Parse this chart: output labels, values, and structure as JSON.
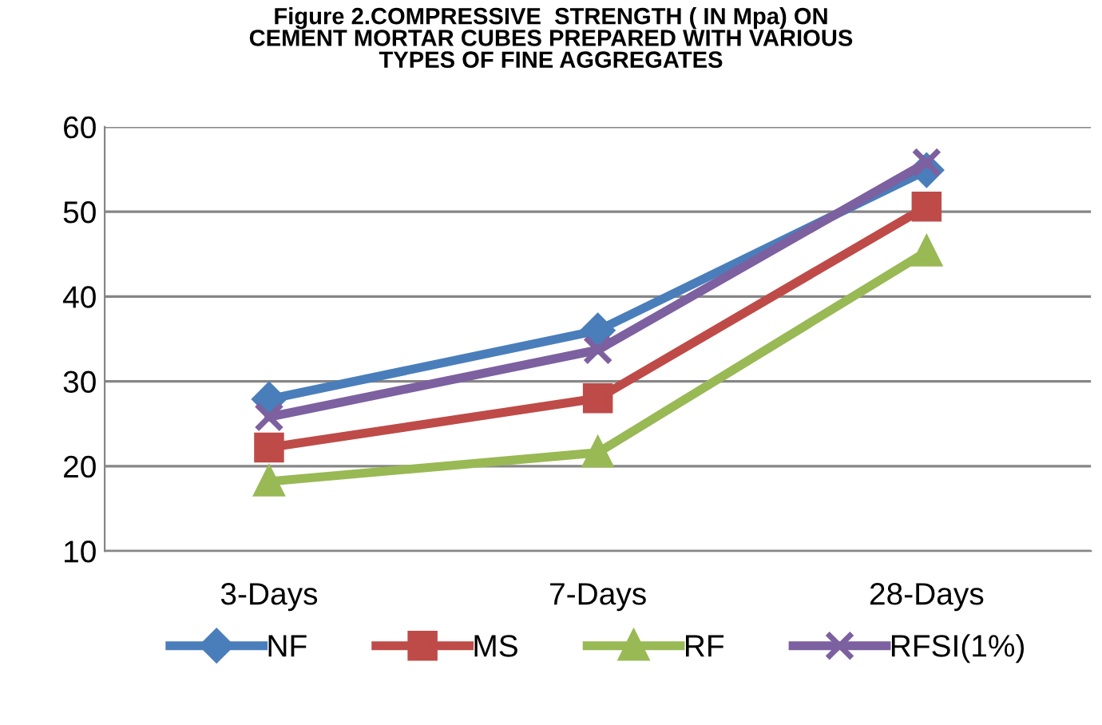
{
  "chart_data": {
    "type": "line",
    "title": "Figure 2.COMPRESSIVE  STRENGTH ( IN Mpa) ON\nCEMENT MORTAR CUBES PREPARED WITH VARIOUS\nTYPES OF FINE AGGREGATES",
    "categories": [
      "3-Days",
      "7-Days",
      "28-Days"
    ],
    "series": [
      {
        "name": "NF",
        "color": "#4a7ebb",
        "marker": "diamond",
        "values": [
          27.9,
          36.0,
          54.9
        ]
      },
      {
        "name": "MS",
        "color": "#be4b48",
        "marker": "square",
        "values": [
          22.2,
          28.0,
          50.6
        ]
      },
      {
        "name": "RF",
        "color": "#98b954",
        "marker": "triangle",
        "values": [
          18.2,
          21.6,
          45.3
        ]
      },
      {
        "name": "RFSI(1%)",
        "color": "#7d60a0",
        "marker": "cross",
        "values": [
          25.8,
          33.7,
          55.8
        ]
      }
    ],
    "ylim": [
      10,
      60
    ],
    "yticks": [
      10,
      20,
      30,
      40,
      50,
      60
    ],
    "grid": "y",
    "legend": "bottom"
  }
}
